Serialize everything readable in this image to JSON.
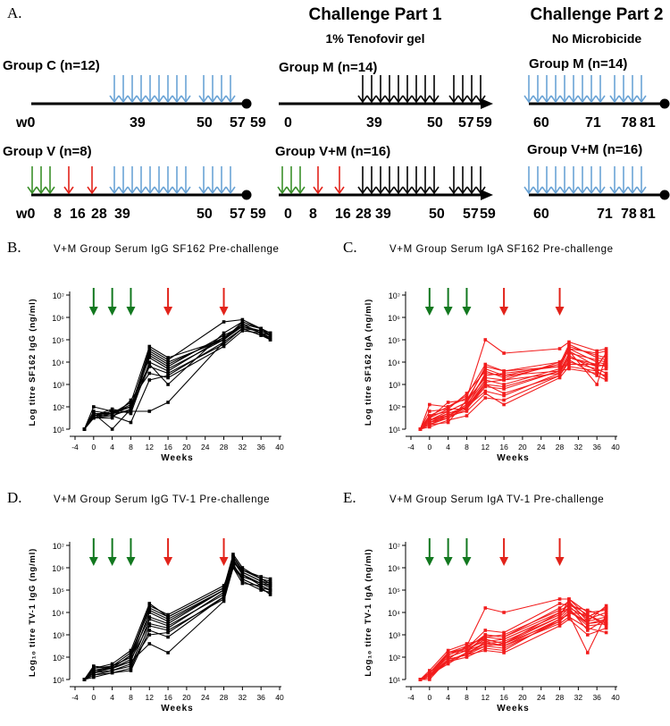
{
  "figure_label": "A.",
  "colors": {
    "prime": "#3a8f2a",
    "boost_red": "#e2231a",
    "challenge_blue": "#6aa3d5",
    "black": "#000000",
    "iga": "#f21d1d",
    "arrow_green": "#12781f",
    "arrow_red": "#e2231a"
  },
  "schedule": {
    "challenge_part1": {
      "title": "Challenge Part 1",
      "subtitle": "1% Tenofovir  gel"
    },
    "challenge_part2": {
      "title": "Challenge Part 2",
      "subtitle": "No Microbicide"
    },
    "rows": [
      {
        "id": "groupC",
        "label": "Group C (n=12)",
        "ticks": [
          "w0",
          "39",
          "50",
          "57",
          "59"
        ]
      },
      {
        "id": "groupV",
        "label": "Group V (n=8)",
        "ticks": [
          "w0",
          "8",
          "16",
          "28",
          "39",
          "50",
          "57",
          "59"
        ]
      },
      {
        "id": "groupM1",
        "label": "Group M (n=14)",
        "ticks": [
          "0",
          "39",
          "50",
          "57",
          "59"
        ]
      },
      {
        "id": "groupVM1",
        "label": "Group V+M (n=16)",
        "ticks": [
          "0",
          "8",
          "16",
          "28",
          "39",
          "50",
          "57",
          "59"
        ]
      },
      {
        "id": "groupM2",
        "label": "Group M (n=14)",
        "ticks": [
          "60",
          "71",
          "78",
          "81"
        ]
      },
      {
        "id": "groupVM2",
        "label": "Group V+M (n=16)",
        "ticks": [
          "60",
          "71",
          "78",
          "81"
        ]
      }
    ]
  },
  "chart_data": [
    {
      "panel": "B.",
      "type": "line",
      "title": "V+M Group Serum IgG SF162 Pre-challenge",
      "xlabel": "Weeks",
      "ylabel": "Log titre SF162 IgG (ng/ml)",
      "xlim": [
        -4,
        40
      ],
      "ylim_log10": [
        1,
        7
      ],
      "xticks": [
        "-4",
        "0",
        "4",
        "8",
        "12",
        "16",
        "20",
        "24",
        "28",
        "32",
        "36",
        "40"
      ],
      "yticks": [
        "10¹",
        "10²",
        "10³",
        "10⁴",
        "10⁵",
        "10⁶",
        "10⁷"
      ],
      "color": "#000000",
      "arrows": [
        {
          "week": 0,
          "color": "green"
        },
        {
          "week": 4,
          "color": "green"
        },
        {
          "week": 8,
          "color": "green"
        },
        {
          "week": 16,
          "color": "red"
        },
        {
          "week": 28,
          "color": "red"
        }
      ],
      "x": [
        -2,
        0,
        4,
        8,
        12,
        16,
        28,
        32,
        36,
        38
      ],
      "series_log10": [
        [
          1.0,
          2.0,
          1.8,
          2.0,
          4.5,
          4.0,
          5.0,
          5.8,
          5.5,
          5.3
        ],
        [
          1.0,
          1.5,
          1.7,
          1.8,
          4.3,
          3.8,
          5.2,
          5.6,
          5.4,
          5.2
        ],
        [
          1.0,
          1.6,
          1.9,
          1.7,
          4.0,
          3.6,
          5.1,
          5.7,
          5.3,
          5.1
        ],
        [
          1.0,
          1.7,
          1.0,
          1.9,
          4.6,
          4.1,
          5.8,
          5.9,
          5.5,
          5.2
        ],
        [
          1.0,
          1.6,
          1.6,
          1.9,
          3.8,
          3.5,
          4.8,
          5.5,
          5.2,
          5.0
        ],
        [
          1.0,
          1.7,
          1.7,
          2.2,
          4.7,
          4.2,
          5.0,
          5.6,
          5.3,
          5.2
        ],
        [
          1.0,
          1.5,
          1.6,
          1.3,
          3.2,
          3.4,
          4.9,
          5.5,
          5.4,
          5.2
        ],
        [
          1.0,
          1.8,
          1.7,
          2.0,
          4.2,
          3.7,
          5.0,
          5.7,
          5.5,
          5.3
        ],
        [
          1.0,
          1.5,
          1.5,
          2.3,
          3.5,
          3.3,
          4.7,
          5.4,
          5.3,
          5.0
        ],
        [
          1.0,
          1.7,
          1.7,
          2.1,
          3.9,
          3.0,
          5.3,
          5.8,
          5.5,
          5.2
        ],
        [
          1.0,
          1.6,
          1.8,
          1.8,
          1.8,
          2.2,
          4.9,
          5.5,
          5.2,
          5.1
        ],
        [
          1.0,
          1.6,
          1.7,
          2.0,
          4.4,
          3.9,
          5.1,
          5.6,
          5.4,
          5.2
        ]
      ]
    },
    {
      "panel": "C.",
      "type": "line",
      "title": "V+M Group Serum IgA SF162 Pre-challenge",
      "xlabel": "Weeks",
      "ylabel": "Log titre SF162 IgA (ng/ml)",
      "xlim": [
        -4,
        40
      ],
      "ylim_log10": [
        1,
        7
      ],
      "xticks": [
        "-4",
        "0",
        "4",
        "8",
        "12",
        "16",
        "20",
        "24",
        "28",
        "32",
        "36",
        "40"
      ],
      "yticks": [
        "10¹",
        "10²",
        "10³",
        "10⁴",
        "10⁵",
        "10⁶",
        "10⁷"
      ],
      "color": "#f21d1d",
      "arrows": [
        {
          "week": 0,
          "color": "green"
        },
        {
          "week": 4,
          "color": "green"
        },
        {
          "week": 8,
          "color": "green"
        },
        {
          "week": 16,
          "color": "red"
        },
        {
          "week": 28,
          "color": "red"
        }
      ],
      "x": [
        -2,
        0,
        4,
        8,
        12,
        16,
        28,
        30,
        36,
        38
      ],
      "series_log10": [
        [
          1.0,
          1.6,
          2.0,
          2.4,
          5.0,
          4.4,
          4.6,
          4.9,
          4.5,
          4.6
        ],
        [
          1.0,
          1.4,
          1.8,
          2.2,
          3.8,
          3.6,
          3.8,
          4.7,
          4.3,
          4.2
        ],
        [
          1.0,
          1.3,
          1.5,
          2.0,
          3.5,
          3.4,
          3.6,
          4.4,
          4.1,
          4.0
        ],
        [
          1.0,
          1.2,
          1.3,
          2.3,
          3.3,
          3.2,
          3.5,
          4.2,
          3.9,
          3.8
        ],
        [
          1.0,
          2.1,
          2.0,
          2.5,
          3.9,
          3.6,
          4.0,
          4.5,
          3.8,
          4.4
        ],
        [
          1.0,
          1.5,
          1.9,
          1.9,
          3.0,
          2.6,
          3.4,
          4.0,
          3.7,
          3.5
        ],
        [
          1.0,
          1.4,
          1.6,
          2.1,
          3.2,
          3.0,
          3.7,
          4.6,
          4.0,
          3.9
        ],
        [
          1.0,
          1.3,
          1.7,
          2.0,
          2.7,
          2.5,
          3.5,
          4.3,
          3.6,
          3.3
        ],
        [
          1.0,
          1.8,
          1.9,
          2.6,
          3.6,
          3.3,
          3.9,
          4.8,
          4.2,
          4.1
        ],
        [
          1.0,
          1.1,
          1.4,
          1.6,
          2.4,
          2.3,
          3.4,
          4.1,
          3.4,
          3.2
        ],
        [
          1.0,
          1.6,
          1.8,
          2.2,
          3.4,
          3.5,
          3.8,
          3.9,
          3.9,
          3.8
        ],
        [
          1.0,
          1.2,
          1.5,
          1.9,
          2.9,
          2.8,
          3.6,
          3.7,
          3.5,
          3.4
        ],
        [
          1.0,
          1.5,
          2.2,
          2.3,
          3.7,
          3.4,
          3.9,
          4.6,
          4.4,
          4.5
        ],
        [
          1.0,
          1.3,
          1.6,
          1.8,
          2.6,
          2.1,
          3.3,
          3.8,
          3.6,
          3.7
        ],
        [
          1.0,
          1.4,
          1.7,
          2.0,
          3.1,
          3.2,
          4.0,
          4.5,
          3.0,
          4.3
        ],
        [
          1.0,
          1.2,
          1.6,
          2.0,
          3.0,
          2.9,
          3.6,
          4.2,
          3.8,
          3.9
        ]
      ]
    },
    {
      "panel": "D.",
      "type": "line",
      "title": "V+M Group Serum IgG TV-1 Pre-challenge",
      "xlabel": "Weeks",
      "ylabel": "Log₁₀ titre TV-1 IgG (ng/ml)",
      "xlim": [
        -4,
        40
      ],
      "ylim_log10": [
        1,
        7
      ],
      "xticks": [
        "-4",
        "0",
        "4",
        "8",
        "12",
        "16",
        "20",
        "24",
        "28",
        "32",
        "36",
        "40"
      ],
      "yticks": [
        "10¹",
        "10²",
        "10³",
        "10⁴",
        "10⁵",
        "10⁶",
        "10⁷"
      ],
      "color": "#000000",
      "arrows": [
        {
          "week": 0,
          "color": "green"
        },
        {
          "week": 4,
          "color": "green"
        },
        {
          "week": 8,
          "color": "green"
        },
        {
          "week": 16,
          "color": "red"
        },
        {
          "week": 28,
          "color": "red"
        }
      ],
      "x": [
        -2,
        0,
        4,
        8,
        12,
        16,
        28,
        30,
        32,
        36,
        38
      ],
      "series_log10": [
        [
          1.0,
          1.5,
          1.6,
          2.0,
          4.2,
          3.8,
          5.1,
          6.6,
          6.0,
          5.5,
          5.4
        ],
        [
          1.0,
          1.4,
          1.5,
          1.8,
          4.0,
          3.6,
          5.0,
          6.5,
          5.8,
          5.4,
          5.2
        ],
        [
          1.0,
          1.3,
          1.4,
          1.6,
          3.7,
          3.4,
          4.8,
          6.3,
          5.7,
          5.2,
          5.0
        ],
        [
          1.0,
          1.6,
          1.5,
          2.1,
          4.3,
          3.9,
          5.2,
          6.2,
          5.9,
          5.6,
          5.5
        ],
        [
          1.0,
          1.2,
          1.3,
          1.5,
          3.4,
          3.2,
          4.6,
          6.0,
          5.5,
          5.1,
          4.8
        ],
        [
          1.0,
          1.4,
          1.6,
          2.2,
          4.1,
          3.7,
          5.0,
          6.4,
          5.7,
          5.3,
          5.1
        ],
        [
          1.0,
          1.3,
          1.5,
          1.9,
          3.5,
          3.3,
          4.9,
          6.1,
          5.6,
          5.3,
          5.2
        ],
        [
          1.0,
          1.5,
          1.7,
          2.3,
          4.4,
          3.8,
          5.1,
          6.5,
          5.9,
          5.5,
          5.3
        ],
        [
          1.0,
          1.2,
          1.4,
          1.7,
          3.0,
          3.1,
          4.7,
          6.2,
          5.4,
          5.0,
          4.9
        ],
        [
          1.0,
          1.4,
          1.5,
          1.8,
          2.6,
          2.2,
          4.5,
          6.0,
          5.3,
          5.2,
          5.0
        ],
        [
          1.0,
          1.3,
          1.6,
          2.0,
          3.8,
          3.5,
          5.0,
          6.3,
          5.8,
          5.4,
          5.3
        ],
        [
          1.0,
          1.1,
          1.3,
          1.4,
          3.2,
          2.9,
          4.7,
          6.1,
          5.5,
          5.1,
          5.0
        ]
      ]
    },
    {
      "panel": "E.",
      "type": "line",
      "title": "V+M Group Serum IgA TV-1 Pre-challenge",
      "xlabel": "Weeks",
      "ylabel": "Log₁₀ titre TV-1 IgA (ng/ml)",
      "xlim": [
        -4,
        40
      ],
      "ylim_log10": [
        1,
        7
      ],
      "xticks": [
        "-4",
        "0",
        "4",
        "8",
        "12",
        "16",
        "20",
        "24",
        "28",
        "32",
        "36",
        "40"
      ],
      "yticks": [
        "10¹",
        "10²",
        "10³",
        "10⁴",
        "10⁵",
        "10⁶",
        "10⁷"
      ],
      "color": "#f21d1d",
      "arrows": [
        {
          "week": 0,
          "color": "green"
        },
        {
          "week": 4,
          "color": "green"
        },
        {
          "week": 8,
          "color": "green"
        },
        {
          "week": 16,
          "color": "red"
        },
        {
          "week": 28,
          "color": "red"
        }
      ],
      "x": [
        -2,
        0,
        4,
        8,
        12,
        16,
        28,
        30,
        34,
        38
      ],
      "series_log10": [
        [
          1.0,
          1.2,
          1.9,
          2.5,
          4.2,
          4.0,
          4.6,
          4.6,
          3.8,
          4.2
        ],
        [
          1.0,
          1.3,
          2.2,
          2.4,
          3.2,
          3.1,
          4.4,
          4.3,
          4.1,
          3.8
        ],
        [
          1.0,
          1.1,
          1.8,
          2.2,
          3.0,
          2.9,
          4.2,
          4.5,
          3.6,
          4.3
        ],
        [
          1.0,
          1.4,
          2.3,
          2.6,
          2.8,
          2.6,
          4.0,
          4.1,
          3.4,
          3.5
        ],
        [
          1.0,
          1.2,
          2.0,
          2.3,
          2.6,
          2.7,
          3.8,
          4.2,
          3.2,
          3.7
        ],
        [
          1.0,
          1.1,
          1.9,
          2.1,
          2.5,
          2.4,
          3.6,
          4.0,
          3.9,
          3.4
        ],
        [
          1.0,
          1.3,
          2.1,
          2.4,
          2.7,
          2.8,
          3.9,
          4.4,
          3.7,
          4.0
        ],
        [
          1.0,
          1.2,
          1.8,
          2.0,
          2.4,
          2.3,
          3.7,
          3.9,
          2.2,
          3.9
        ],
        [
          1.0,
          1.1,
          2.2,
          2.5,
          2.9,
          3.0,
          4.1,
          4.3,
          3.5,
          3.6
        ],
        [
          1.0,
          1.2,
          1.7,
          2.2,
          2.6,
          2.5,
          3.5,
          3.8,
          3.3,
          3.1
        ],
        [
          1.0,
          1.3,
          2.0,
          2.3,
          2.8,
          2.6,
          3.8,
          4.6,
          4.0,
          4.1
        ],
        [
          1.0,
          1.0,
          1.9,
          2.1,
          2.3,
          2.2,
          3.4,
          3.7,
          3.0,
          3.3
        ],
        [
          1.0,
          1.2,
          2.1,
          2.4,
          3.0,
          2.9,
          4.0,
          4.2,
          3.8,
          4.2
        ],
        [
          1.0,
          1.1,
          1.8,
          2.2,
          2.5,
          2.6,
          3.6,
          4.0,
          3.6,
          3.8
        ],
        [
          1.0,
          1.3,
          2.2,
          2.3,
          2.9,
          2.8,
          3.9,
          4.4,
          3.9,
          3.5
        ],
        [
          1.0,
          1.2,
          1.9,
          2.1,
          2.7,
          2.5,
          3.7,
          4.1,
          3.5,
          3.7
        ]
      ]
    }
  ]
}
